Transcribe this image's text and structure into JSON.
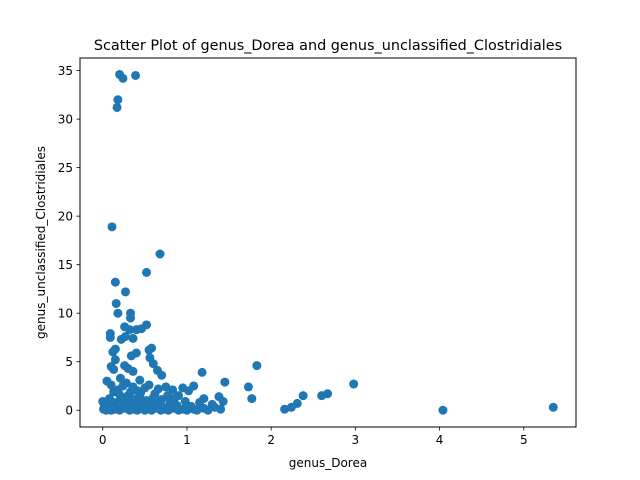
{
  "chart_data": {
    "type": "scatter",
    "title": "Scatter Plot of genus_Dorea and genus_unclassified_Clostridiales",
    "xlabel": "genus_Dorea",
    "ylabel": "genus_unclassified_Clostridiales",
    "xlim": [
      -0.27,
      5.62
    ],
    "ylim": [
      -1.73,
      36.3
    ],
    "xticks": [
      0,
      1,
      2,
      3,
      4,
      5
    ],
    "yticks": [
      0,
      5,
      10,
      15,
      20,
      25,
      30,
      35
    ],
    "grid": false,
    "marker_color": "#1f77b4",
    "points": [
      [
        0.2,
        34.6
      ],
      [
        0.24,
        34.2
      ],
      [
        0.39,
        34.5
      ],
      [
        0.18,
        32.0
      ],
      [
        0.17,
        31.2
      ],
      [
        0.11,
        18.9
      ],
      [
        0.68,
        16.1
      ],
      [
        0.52,
        14.2
      ],
      [
        0.15,
        13.2
      ],
      [
        0.27,
        12.2
      ],
      [
        0.16,
        11.0
      ],
      [
        0.33,
        10.0
      ],
      [
        0.18,
        10.0
      ],
      [
        0.33,
        9.5
      ],
      [
        0.52,
        8.8
      ],
      [
        0.26,
        8.6
      ],
      [
        0.32,
        8.3
      ],
      [
        0.4,
        8.3
      ],
      [
        0.46,
        8.4
      ],
      [
        0.09,
        7.9
      ],
      [
        0.09,
        7.5
      ],
      [
        0.22,
        7.3
      ],
      [
        0.27,
        7.6
      ],
      [
        0.36,
        7.4
      ],
      [
        0.58,
        6.4
      ],
      [
        0.55,
        6.2
      ],
      [
        0.15,
        6.3
      ],
      [
        0.12,
        6.0
      ],
      [
        0.4,
        5.9
      ],
      [
        0.34,
        5.6
      ],
      [
        0.56,
        5.4
      ],
      [
        0.15,
        5.2
      ],
      [
        0.6,
        4.8
      ],
      [
        0.1,
        4.5
      ],
      [
        0.26,
        4.6
      ],
      [
        0.13,
        4.2
      ],
      [
        0.65,
        4.1
      ],
      [
        0.3,
        4.3
      ],
      [
        0.36,
        4.0
      ],
      [
        1.83,
        4.6
      ],
      [
        1.18,
        3.9
      ],
      [
        0.7,
        3.6
      ],
      [
        0.05,
        3.0
      ],
      [
        0.21,
        3.3
      ],
      [
        0.44,
        3.1
      ],
      [
        1.45,
        2.9
      ],
      [
        0.1,
        2.6
      ],
      [
        0.28,
        2.8
      ],
      [
        0.55,
        2.6
      ],
      [
        0.75,
        2.4
      ],
      [
        1.73,
        2.4
      ],
      [
        2.98,
        2.7
      ],
      [
        1.08,
        2.5
      ],
      [
        0.95,
        2.3
      ],
      [
        0.36,
        2.4
      ],
      [
        0.66,
        2.2
      ],
      [
        0.83,
        2.1
      ],
      [
        1.02,
        2.0
      ],
      [
        0.18,
        2.1
      ],
      [
        2.67,
        1.7
      ],
      [
        2.6,
        1.5
      ],
      [
        2.38,
        1.5
      ],
      [
        1.77,
        1.2
      ],
      [
        0.9,
        1.5
      ],
      [
        1.2,
        1.2
      ],
      [
        1.38,
        1.4
      ],
      [
        0.45,
        1.8
      ],
      [
        0.3,
        1.5
      ],
      [
        0.6,
        1.3
      ],
      [
        0.08,
        1.2
      ],
      [
        2.31,
        0.7
      ],
      [
        2.24,
        0.3
      ],
      [
        2.16,
        0.1
      ],
      [
        4.04,
        0.0
      ],
      [
        5.35,
        0.3
      ],
      [
        1.43,
        0.9
      ],
      [
        1.3,
        0.6
      ],
      [
        1.15,
        0.8
      ],
      [
        1.05,
        0.4
      ],
      [
        0.98,
        0.9
      ],
      [
        0.88,
        0.5
      ],
      [
        0.8,
        0.8
      ],
      [
        0.72,
        0.3
      ],
      [
        0.66,
        0.9
      ],
      [
        0.6,
        0.5
      ],
      [
        0.52,
        1.0
      ],
      [
        0.48,
        0.4
      ],
      [
        0.43,
        0.7
      ],
      [
        0.38,
        1.1
      ],
      [
        0.34,
        0.3
      ],
      [
        0.3,
        0.9
      ],
      [
        0.25,
        0.5
      ],
      [
        0.22,
        1.2
      ],
      [
        0.18,
        0.2
      ],
      [
        0.15,
        0.8
      ],
      [
        0.12,
        0.4
      ],
      [
        0.08,
        0.7
      ],
      [
        0.05,
        0.2
      ],
      [
        0.02,
        0.5
      ],
      [
        0.0,
        0.9
      ],
      [
        0.01,
        0.1
      ],
      [
        0.04,
        0.0
      ],
      [
        0.07,
        0.3
      ],
      [
        0.1,
        0.0
      ],
      [
        0.14,
        0.1
      ],
      [
        0.2,
        0.0
      ],
      [
        0.27,
        0.2
      ],
      [
        0.32,
        0.0
      ],
      [
        0.37,
        0.1
      ],
      [
        0.41,
        0.0
      ],
      [
        0.46,
        0.2
      ],
      [
        0.5,
        0.0
      ],
      [
        0.55,
        0.1
      ],
      [
        0.58,
        0.0
      ],
      [
        0.63,
        0.2
      ],
      [
        0.69,
        0.0
      ],
      [
        0.74,
        0.1
      ],
      [
        0.78,
        0.0
      ],
      [
        0.84,
        0.2
      ],
      [
        0.9,
        0.0
      ],
      [
        0.95,
        0.1
      ],
      [
        1.0,
        0.0
      ],
      [
        1.08,
        0.1
      ],
      [
        1.12,
        0.0
      ],
      [
        1.2,
        0.2
      ],
      [
        1.25,
        0.0
      ],
      [
        1.33,
        0.3
      ],
      [
        1.4,
        0.1
      ],
      [
        0.62,
        1.7
      ],
      [
        0.41,
        2.0
      ],
      [
        0.24,
        2.5
      ],
      [
        0.5,
        2.3
      ],
      [
        0.7,
        1.1
      ],
      [
        0.77,
        1.5
      ],
      [
        0.85,
        1.2
      ],
      [
        0.33,
        1.9
      ],
      [
        0.2,
        1.6
      ],
      [
        0.13,
        1.9
      ],
      [
        0.57,
        0.6
      ],
      [
        0.44,
        1.4
      ]
    ]
  }
}
